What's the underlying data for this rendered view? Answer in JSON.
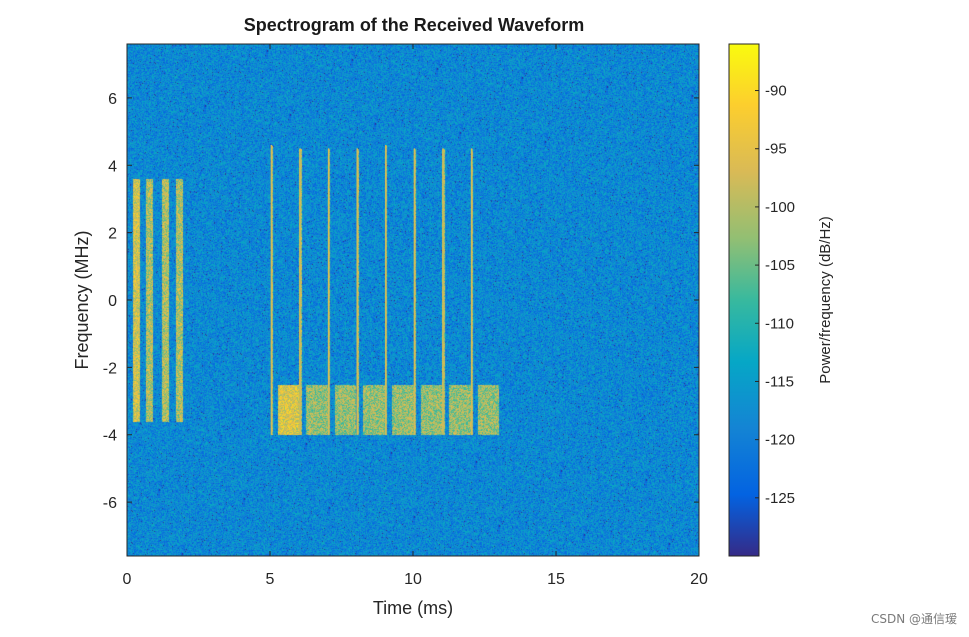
{
  "chart_data": {
    "type": "heatmap",
    "title": "Spectrogram of the Received Waveform",
    "xlabel": "Time (ms)",
    "ylabel": "Frequency (MHz)",
    "xlim": [
      0,
      20
    ],
    "ylim": [
      -7.6,
      7.6
    ],
    "xticks": [
      0,
      5,
      10,
      15,
      20
    ],
    "yticks": [
      -6,
      -4,
      -2,
      0,
      2,
      4,
      6
    ],
    "colorbar": {
      "label": "Power/frequency (dB/Hz)",
      "range": [
        -130,
        -86
      ],
      "ticks": [
        -125,
        -120,
        -115,
        -110,
        -105,
        -100,
        -95,
        -90
      ],
      "colormap": "parula"
    },
    "background_level_db": -118,
    "signal_blocks": [
      {
        "t_start": 0.2,
        "t_end": 0.45,
        "f_low": -3.6,
        "f_high": 3.6,
        "level_db": -97
      },
      {
        "t_start": 0.65,
        "t_end": 0.9,
        "f_low": -3.6,
        "f_high": 3.6,
        "level_db": -100
      },
      {
        "t_start": 1.2,
        "t_end": 1.45,
        "f_low": -3.6,
        "f_high": 3.6,
        "level_db": -100
      },
      {
        "t_start": 1.7,
        "t_end": 1.95,
        "f_low": -3.6,
        "f_high": 3.6,
        "level_db": -100
      }
    ],
    "vertical_lines": [
      {
        "t": 5.05,
        "f_low": -4.0,
        "f_high": 4.6
      },
      {
        "t": 6.05,
        "f_low": -4.0,
        "f_high": 4.5
      },
      {
        "t": 7.05,
        "f_low": -4.0,
        "f_high": 4.5
      },
      {
        "t": 8.05,
        "f_low": -4.0,
        "f_high": 4.5
      },
      {
        "t": 9.05,
        "f_low": -4.0,
        "f_high": 4.6
      },
      {
        "t": 10.05,
        "f_low": -4.0,
        "f_high": 4.5
      },
      {
        "t": 11.05,
        "f_low": -4.0,
        "f_high": 4.5
      },
      {
        "t": 12.05,
        "f_low": -4.0,
        "f_high": 4.5
      }
    ],
    "bursts": [
      {
        "t_start": 5.25,
        "t_end": 6.0,
        "f_low": -4.0,
        "f_high": -2.5,
        "level_db": -96
      },
      {
        "t_start": 6.25,
        "t_end": 7.0,
        "f_low": -4.0,
        "f_high": -2.5,
        "level_db": -102
      },
      {
        "t_start": 7.25,
        "t_end": 8.0,
        "f_low": -4.0,
        "f_high": -2.5,
        "level_db": -102
      },
      {
        "t_start": 8.25,
        "t_end": 9.0,
        "f_low": -4.0,
        "f_high": -2.5,
        "level_db": -102
      },
      {
        "t_start": 9.25,
        "t_end": 10.0,
        "f_low": -4.0,
        "f_high": -2.5,
        "level_db": -102
      },
      {
        "t_start": 10.25,
        "t_end": 11.0,
        "f_low": -4.0,
        "f_high": -2.5,
        "level_db": -102
      },
      {
        "t_start": 11.25,
        "t_end": 12.0,
        "f_low": -4.0,
        "f_high": -2.5,
        "level_db": -102
      },
      {
        "t_start": 12.25,
        "t_end": 13.0,
        "f_low": -4.0,
        "f_high": -2.5,
        "level_db": -102
      }
    ]
  },
  "watermark": "CSDN @通信瑷"
}
